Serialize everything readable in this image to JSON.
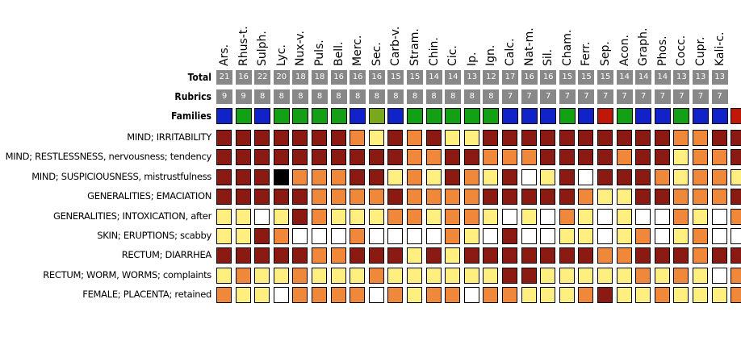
{
  "header_labels": {
    "total": "Total",
    "rubrics": "Rubrics",
    "families": "Families"
  },
  "remedies": [
    {
      "name": "Ars.",
      "total": "21",
      "rubrics": "9",
      "family": "blue"
    },
    {
      "name": "Rhus-t.",
      "total": "16",
      "rubrics": "9",
      "family": "green"
    },
    {
      "name": "Sulph.",
      "total": "22",
      "rubrics": "8",
      "family": "blue"
    },
    {
      "name": "Lyc.",
      "total": "20",
      "rubrics": "8",
      "family": "green"
    },
    {
      "name": "Nux-v.",
      "total": "18",
      "rubrics": "8",
      "family": "green"
    },
    {
      "name": "Puls.",
      "total": "18",
      "rubrics": "8",
      "family": "green"
    },
    {
      "name": "Bell.",
      "total": "16",
      "rubrics": "8",
      "family": "green"
    },
    {
      "name": "Merc.",
      "total": "16",
      "rubrics": "8",
      "family": "blue"
    },
    {
      "name": "Sec.",
      "total": "16",
      "rubrics": "8",
      "family": "olive"
    },
    {
      "name": "Carb-v.",
      "total": "15",
      "rubrics": "8",
      "family": "blue"
    },
    {
      "name": "Stram.",
      "total": "15",
      "rubrics": "8",
      "family": "green"
    },
    {
      "name": "Chin.",
      "total": "14",
      "rubrics": "8",
      "family": "green"
    },
    {
      "name": "Cic.",
      "total": "14",
      "rubrics": "8",
      "family": "green"
    },
    {
      "name": "Ip.",
      "total": "13",
      "rubrics": "8",
      "family": "green"
    },
    {
      "name": "Ign.",
      "total": "12",
      "rubrics": "8",
      "family": "green"
    },
    {
      "name": "Calc.",
      "total": "17",
      "rubrics": "7",
      "family": "blue"
    },
    {
      "name": "Nat-m.",
      "total": "16",
      "rubrics": "7",
      "family": "blue"
    },
    {
      "name": "Sil.",
      "total": "16",
      "rubrics": "7",
      "family": "blue"
    },
    {
      "name": "Cham.",
      "total": "15",
      "rubrics": "7",
      "family": "green"
    },
    {
      "name": "Ferr.",
      "total": "15",
      "rubrics": "7",
      "family": "blue"
    },
    {
      "name": "Sep.",
      "total": "15",
      "rubrics": "7",
      "family": "red"
    },
    {
      "name": "Acon.",
      "total": "14",
      "rubrics": "7",
      "family": "green"
    },
    {
      "name": "Graph.",
      "total": "14",
      "rubrics": "7",
      "family": "blue"
    },
    {
      "name": "Phos.",
      "total": "14",
      "rubrics": "7",
      "family": "blue"
    },
    {
      "name": "Cocc.",
      "total": "13",
      "rubrics": "7",
      "family": "green"
    },
    {
      "name": "Cupr.",
      "total": "13",
      "rubrics": "7",
      "family": "blue"
    },
    {
      "name": "Kali-c.",
      "total": "13",
      "rubrics": "7",
      "family": "blue"
    },
    {
      "name": "",
      "total": "",
      "rubrics": "",
      "family": "red"
    }
  ],
  "rubrics": [
    {
      "label": "MIND; IRRITABILITY",
      "grades": "DDDDDDDOYDODYYDDDDDDDDDDOODD"
    },
    {
      "label": "MIND; RESTLESSNESS, nervousness; tendency",
      "grades": "DDDDDDDDDDOODDOOODDDDODDYOOD"
    },
    {
      "label": "MIND; SUSPICIOUSNESS, mistrustfulness",
      "grades": "DDDBOOODDYOYDOYDWYDWDDDOYOOY"
    },
    {
      "label": "GENERALITIES; EMACIATION",
      "grades": "DDDDDOOOODOOOODDDDDOYYDDOOOD"
    },
    {
      "label": "GENERALITIES; INTOXICATION, after",
      "grades": "YYWYDOYYYOOYOOYWYWOYWYWWOYWO"
    },
    {
      "label": "SKIN; ERUPTIONS; scabby",
      "grades": "YYDOWWWOWWWWOYWDWWYYWYOWYOWW"
    },
    {
      "label": "RECTUM; DIARRHEA",
      "grades": "DDDDDOODDDYDYDDDDDDDOODDDODD"
    },
    {
      "label": "RECTUM; WORM, WORMS; complaints",
      "grades": "YOYYOYYYOYYYYYYDDYYYYYOYOYWO"
    },
    {
      "label": "FEMALE; PLACENTA; retained",
      "grades": "OYYWOOOOWOYOOWOOYYYODYYOYYYO"
    }
  ],
  "colors": {
    "grade_D": "#8b1a12",
    "grade_O": "#f0883c",
    "grade_Y": "#ffef80",
    "grade_W": "#ffffff",
    "grade_B": "#000000",
    "family_blue": "#1122c8",
    "family_green": "#14a014",
    "family_olive": "#7aa81c",
    "family_red": "#c01808",
    "number_bg": "#888888"
  }
}
